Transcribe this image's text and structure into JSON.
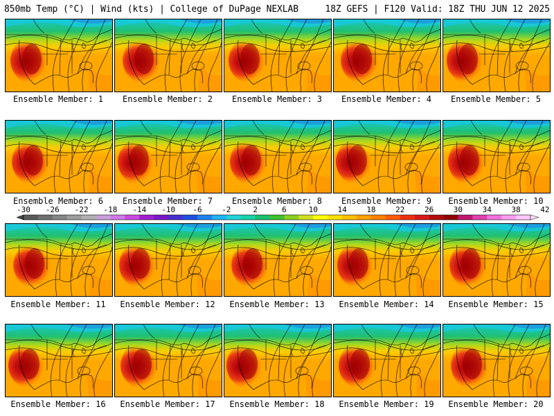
{
  "header": {
    "left": "850mb Temp (°C) | Wind (kts) | College of DuPage NEXLAB",
    "right": "18Z GEFS | F120 Valid: 18Z THU JUN 12 2025"
  },
  "members": [
    {
      "label": "Ensemble Member: 1"
    },
    {
      "label": "Ensemble Member: 2"
    },
    {
      "label": "Ensemble Member: 3"
    },
    {
      "label": "Ensemble Member: 4"
    },
    {
      "label": "Ensemble Member: 5"
    },
    {
      "label": "Ensemble Member: 6"
    },
    {
      "label": "Ensemble Member: 7"
    },
    {
      "label": "Ensemble Member: 8"
    },
    {
      "label": "Ensemble Member: 9"
    },
    {
      "label": "Ensemble Member: 10"
    },
    {
      "label": "Ensemble Member: 11"
    },
    {
      "label": "Ensemble Member: 12"
    },
    {
      "label": "Ensemble Member: 13"
    },
    {
      "label": "Ensemble Member: 14"
    },
    {
      "label": "Ensemble Member: 15"
    },
    {
      "label": "Ensemble Member: 16"
    },
    {
      "label": "Ensemble Member: 17"
    },
    {
      "label": "Ensemble Member: 18"
    },
    {
      "label": "Ensemble Member: 19"
    },
    {
      "label": "Ensemble Member: 20"
    }
  ],
  "colorbar": {
    "labels": [
      "-30",
      "-26",
      "-22",
      "-18",
      "-14",
      "-10",
      "-6",
      "-2",
      "2",
      "6",
      "10",
      "14",
      "18",
      "22",
      "26",
      "30",
      "34",
      "38",
      "42"
    ],
    "colors": [
      "#5a5a5a",
      "#707070",
      "#868686",
      "#9c9c9c",
      "#b0b0b0",
      "#c8a0d8",
      "#d07ae8",
      "#c84be0",
      "#a020d0",
      "#7818c8",
      "#4830d0",
      "#1f4fe0",
      "#1f80f0",
      "#1fb4f5",
      "#22d4d8",
      "#18d2a8",
      "#18c070",
      "#40c030",
      "#88d020",
      "#d0e020",
      "#ffff00",
      "#ffe000",
      "#ffc000",
      "#ffa000",
      "#ff8000",
      "#ff5a00",
      "#f03010",
      "#d81818",
      "#b40c0c",
      "#900000",
      "#c01870",
      "#e040b0",
      "#f070e0",
      "#ff9cf0",
      "#ffc8f8"
    ]
  }
}
